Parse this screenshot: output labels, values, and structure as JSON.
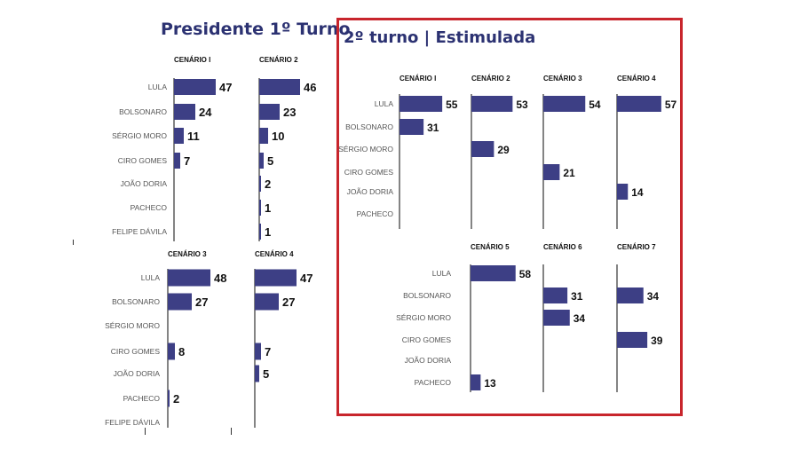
{
  "header": {
    "left_title": "Presidente 1º Turno",
    "right_title": "2º turno | Estimulada"
  },
  "colors": {
    "bar": "#3d3f85",
    "title": "#2c3272",
    "frame": "#c8252c"
  },
  "chart_data": [
    {
      "type": "bar",
      "title": "Presidente 1º Turno",
      "categories": [
        "LULA",
        "BOLSONARO",
        "SÉRGIO MORO",
        "CIRO GOMES",
        "JOÃO DORIA",
        "PACHECO",
        "FELIPE DÁVILA"
      ],
      "series": [
        {
          "name": "CENÁRIO I",
          "values": [
            47,
            24,
            11,
            7,
            null,
            null,
            null
          ]
        },
        {
          "name": "CENÁRIO 2",
          "values": [
            46,
            23,
            10,
            5,
            2,
            1,
            1
          ]
        }
      ]
    },
    {
      "type": "bar",
      "categories": [
        "LULA",
        "BOLSONARO",
        "SÉRGIO MORO",
        "CIRO GOMES",
        "JOÃO DORIA",
        "PACHECO",
        "FELIPE DÁVILA"
      ],
      "series": [
        {
          "name": "CENÁRIO 3",
          "values": [
            48,
            27,
            null,
            8,
            null,
            2,
            null
          ]
        },
        {
          "name": "CENÁRIO 4",
          "values": [
            47,
            27,
            null,
            7,
            5,
            null,
            null
          ]
        }
      ]
    },
    {
      "type": "bar",
      "title": "2º turno | Estimulada",
      "categories": [
        "LULA",
        "BOLSONARO",
        "SÉRGIO MORO",
        "CIRO GOMES",
        "JOÃO DORIA",
        "PACHECO"
      ],
      "series": [
        {
          "name": "CENÁRIO I",
          "values": [
            55,
            31,
            null,
            null,
            null,
            null
          ]
        },
        {
          "name": "CENÁRIO 2",
          "values": [
            53,
            null,
            29,
            null,
            null,
            null
          ]
        },
        {
          "name": "CENÁRIO 3",
          "values": [
            54,
            null,
            null,
            21,
            null,
            null
          ]
        },
        {
          "name": "CENÁRIO 4",
          "values": [
            57,
            null,
            null,
            null,
            14,
            null
          ]
        }
      ]
    },
    {
      "type": "bar",
      "categories": [
        "LULA",
        "BOLSONARO",
        "SÉRGIO MORO",
        "CIRO GOMES",
        "JOÃO DORIA",
        "PACHECO"
      ],
      "series": [
        {
          "name": "CENÁRIO 5",
          "values": [
            58,
            null,
            null,
            null,
            null,
            13
          ]
        },
        {
          "name": "CENÁRIO 6",
          "values": [
            null,
            31,
            34,
            null,
            null,
            null
          ]
        },
        {
          "name": "CENÁRIO 7",
          "values": [
            null,
            34,
            null,
            39,
            null,
            null
          ]
        }
      ]
    }
  ]
}
